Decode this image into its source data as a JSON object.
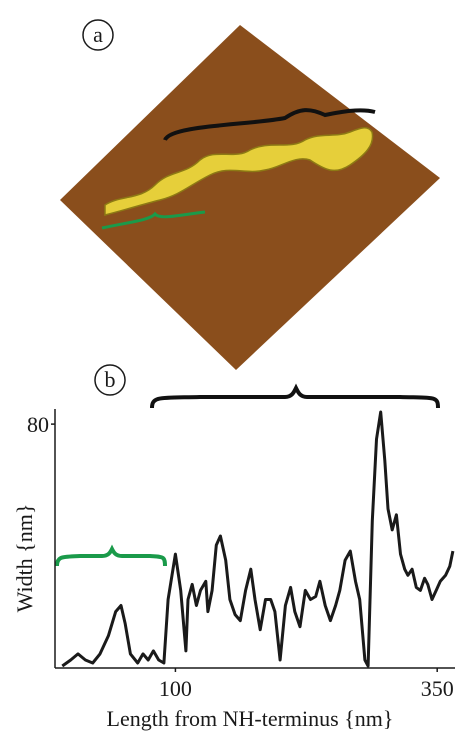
{
  "panel_labels": [
    "a",
    "b"
  ],
  "chart_data": {
    "type": "line",
    "xlabel": "Length from NH-terminus {nm}",
    "ylabel": "Width {nm}",
    "xlim": [
      -15,
      367
    ],
    "ylim": [
      0,
      85
    ],
    "xticks": [
      100,
      350
    ],
    "yticks": [
      80
    ],
    "color": "#1a1a1a",
    "x": [
      -8,
      0,
      7,
      14,
      21,
      28,
      36,
      43,
      48,
      52,
      57,
      64,
      69,
      74,
      79,
      84,
      89,
      93,
      100,
      105,
      110,
      112,
      116,
      120,
      124,
      129,
      131,
      135,
      139,
      143,
      148,
      152,
      157,
      162,
      167,
      172,
      176,
      181,
      186,
      191,
      195,
      200,
      205,
      210,
      214,
      219,
      224,
      229,
      234,
      238,
      243,
      248,
      253,
      257,
      262,
      267,
      272,
      276,
      281,
      284,
      288,
      292,
      296,
      300,
      303,
      307,
      311,
      315,
      319,
      322,
      326,
      330,
      334,
      338,
      341,
      345,
      349,
      353,
      358,
      362,
      365
    ],
    "values": [
      0,
      2,
      4,
      2,
      1,
      4,
      10,
      18,
      20,
      14,
      4,
      1,
      4,
      2,
      5,
      2,
      1,
      22,
      37,
      25,
      5,
      22,
      27,
      20,
      25,
      28,
      18,
      25,
      40,
      43,
      35,
      22,
      17,
      15,
      25,
      32,
      22,
      12,
      22,
      22,
      18,
      2,
      20,
      26,
      18,
      13,
      25,
      22,
      23,
      28,
      20,
      15,
      20,
      25,
      35,
      38,
      28,
      22,
      2,
      0,
      48,
      75,
      84,
      68,
      52,
      45,
      50,
      37,
      32,
      30,
      32,
      26,
      25,
      29,
      27,
      22,
      25,
      28,
      30,
      33,
      38
    ]
  }
}
